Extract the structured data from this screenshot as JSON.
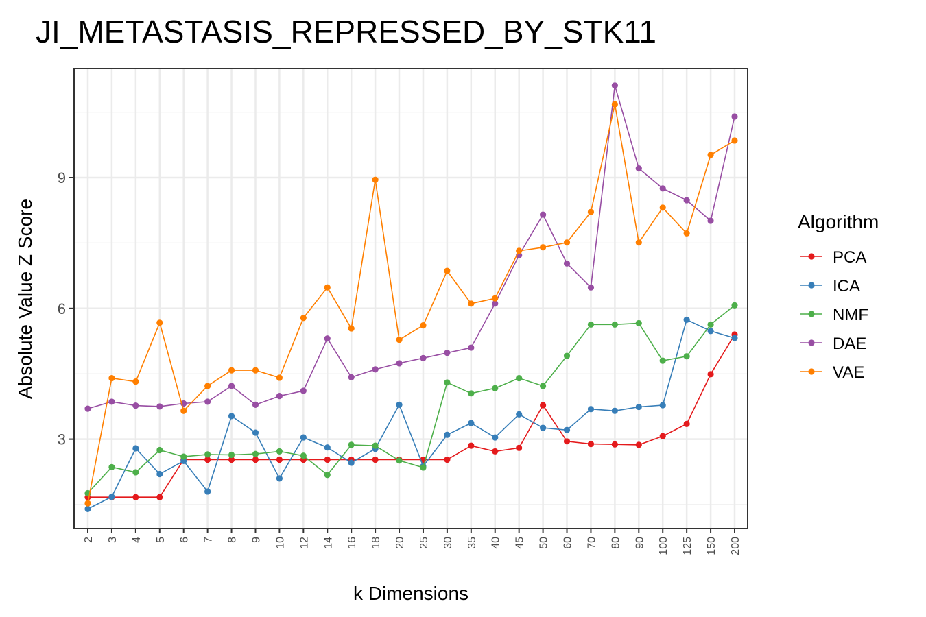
{
  "chart_data": {
    "type": "line",
    "title": "JI_METASTASIS_REPRESSED_BY_STK11",
    "xlabel": "k Dimensions",
    "ylabel": "Absolute Value Z Score",
    "categories": [
      "2",
      "3",
      "4",
      "5",
      "6",
      "7",
      "8",
      "9",
      "10",
      "12",
      "14",
      "16",
      "18",
      "20",
      "25",
      "30",
      "35",
      "40",
      "45",
      "50",
      "60",
      "70",
      "80",
      "90",
      "100",
      "125",
      "150",
      "200"
    ],
    "yticks": [
      "3",
      "6",
      "9"
    ],
    "yticks_values": [
      3,
      6,
      9
    ],
    "ylim": [
      0.95,
      11.5
    ],
    "grid": true,
    "legend_title": "Algorithm",
    "legend_position": "right",
    "series": [
      {
        "name": "PCA",
        "color": "#e41a1c",
        "values": [
          1.67,
          1.67,
          1.67,
          1.67,
          2.53,
          2.53,
          2.53,
          2.53,
          2.53,
          2.53,
          2.53,
          2.53,
          2.53,
          2.53,
          2.53,
          2.53,
          2.85,
          2.72,
          2.8,
          3.78,
          2.95,
          2.89,
          2.88,
          2.87,
          3.07,
          3.35,
          4.49,
          5.4
        ]
      },
      {
        "name": "ICA",
        "color": "#377eb8",
        "values": [
          1.4,
          1.68,
          2.79,
          2.2,
          2.5,
          1.8,
          3.53,
          3.15,
          2.1,
          3.04,
          2.81,
          2.46,
          2.78,
          3.79,
          2.38,
          3.1,
          3.37,
          3.04,
          3.57,
          3.26,
          3.21,
          3.69,
          3.65,
          3.74,
          3.78,
          5.74,
          5.48,
          5.32
        ]
      },
      {
        "name": "NMF",
        "color": "#4daf4a",
        "values": [
          1.76,
          2.36,
          2.24,
          2.75,
          2.6,
          2.65,
          2.64,
          2.66,
          2.72,
          2.62,
          2.18,
          2.87,
          2.85,
          2.51,
          2.35,
          4.3,
          4.05,
          4.17,
          4.4,
          4.22,
          4.91,
          5.63,
          5.63,
          5.66,
          4.8,
          4.9,
          5.63,
          6.07
        ]
      },
      {
        "name": "DAE",
        "color": "#984ea3",
        "values": [
          3.7,
          3.86,
          3.77,
          3.75,
          3.82,
          3.86,
          4.22,
          3.79,
          3.99,
          4.11,
          5.31,
          4.42,
          4.6,
          4.74,
          4.86,
          4.98,
          5.1,
          6.11,
          7.22,
          8.15,
          7.03,
          6.48,
          11.11,
          9.21,
          8.75,
          8.48,
          8.01,
          10.4
        ]
      },
      {
        "name": "VAE",
        "color": "#ff7f00",
        "values": [
          1.53,
          4.4,
          4.32,
          5.67,
          3.65,
          4.22,
          4.58,
          4.58,
          4.41,
          5.78,
          6.48,
          5.54,
          8.95,
          5.28,
          5.61,
          6.86,
          6.11,
          6.23,
          7.32,
          7.4,
          7.51,
          8.21,
          10.68,
          7.51,
          8.31,
          7.72,
          9.52,
          9.85
        ]
      }
    ]
  }
}
